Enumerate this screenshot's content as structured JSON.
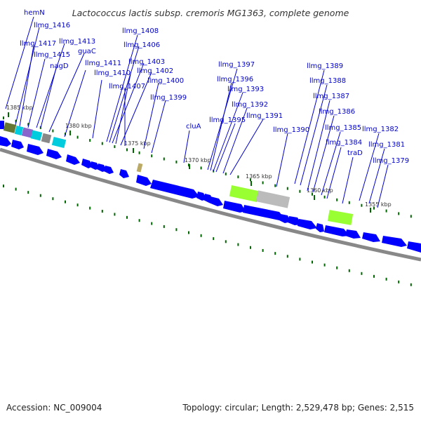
{
  "title": "Lactococcus lactis subsp. cremoris MG1363, complete genome",
  "accession": "Accession: NC_009004",
  "topology": "Topology: circular; Length: 2,529,478 bp; Genes: 2,515",
  "colors": {
    "gene": "#0000ff",
    "label": "#0000cc",
    "backbone": "#888888",
    "tick": "#006600",
    "feature_green": "#99ff33",
    "feature_gray": "#bbbbbb",
    "feature_khaki": "#bbaa66",
    "feature_cyan": "#00ccdd",
    "feature_purple": "#8866cc",
    "feature_olive": "#667733"
  },
  "scale_labels": [
    "1385 kbp",
    "1380 kbp",
    "1375 kbp",
    "1370 kbp",
    "1365 kbp",
    "1360 kbp",
    "1355 kbp"
  ],
  "gene_labels": [
    "hemN",
    "llmg_1416",
    "llmg_1417",
    "llmg_1413",
    "llmg_1415",
    "guaC",
    "nagD",
    "llmg_1408",
    "llmg_1406",
    "llmg_1403",
    "llmg_1411",
    "llmg_1402",
    "llmg_1410",
    "llmg_1400",
    "llmg_1407",
    "llmg_1399",
    "cluA",
    "llmg_1397",
    "llmg_1396",
    "llmg_1393",
    "llmg_1392",
    "llmg_1391",
    "llmg_1395",
    "llmg_1389",
    "llmg_1388",
    "llmg_1387",
    "llmg_1386",
    "llmg_1390",
    "llmg_1385",
    "llmg_1384",
    "traD",
    "llmg_1382",
    "llmg_1381",
    "llmg_1379"
  ]
}
